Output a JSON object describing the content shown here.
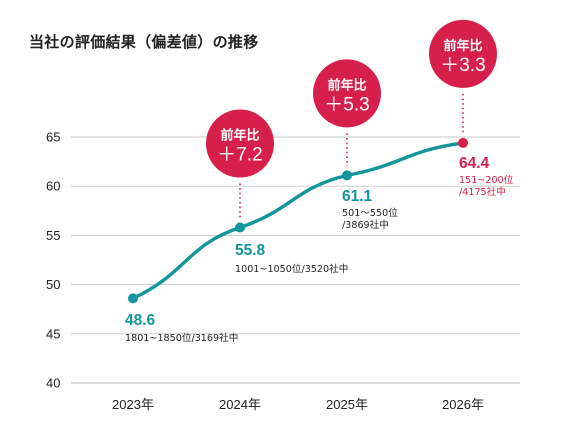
{
  "colors": {
    "teal": "#13959a",
    "crimson": "#d61f4a",
    "grid": "#c9c9c9",
    "text": "#222222"
  },
  "chart_data": {
    "type": "line",
    "title": "当社の評価結果（偏差値）の推移",
    "xlabel": "",
    "ylabel": "",
    "categories": [
      "2023年",
      "2024年",
      "2025年",
      "2026年"
    ],
    "series": [
      {
        "values": [
          48.6,
          55.8,
          61.1,
          64.4
        ]
      }
    ],
    "ylim": [
      40,
      65
    ],
    "yticks": [
      40,
      45,
      50,
      55,
      60,
      65
    ],
    "grid": true,
    "point_labels": [
      {
        "value": "48.6",
        "rank": "1801~1850位/3169社中",
        "highlight": false
      },
      {
        "value": "55.8",
        "rank": "1001~1050位/3520社中",
        "highlight": false
      },
      {
        "value": "61.1",
        "rank": "501～550位\n/3869社中",
        "highlight": false
      },
      {
        "value": "64.4",
        "rank": "151~200位\n/4175社中",
        "highlight": true
      }
    ],
    "annotations": [
      {
        "index": 1,
        "heading": "前年比",
        "text": "＋7.2"
      },
      {
        "index": 2,
        "heading": "前年比",
        "text": "＋5.3"
      },
      {
        "index": 3,
        "heading": "前年比",
        "text": "＋3.3"
      }
    ]
  }
}
